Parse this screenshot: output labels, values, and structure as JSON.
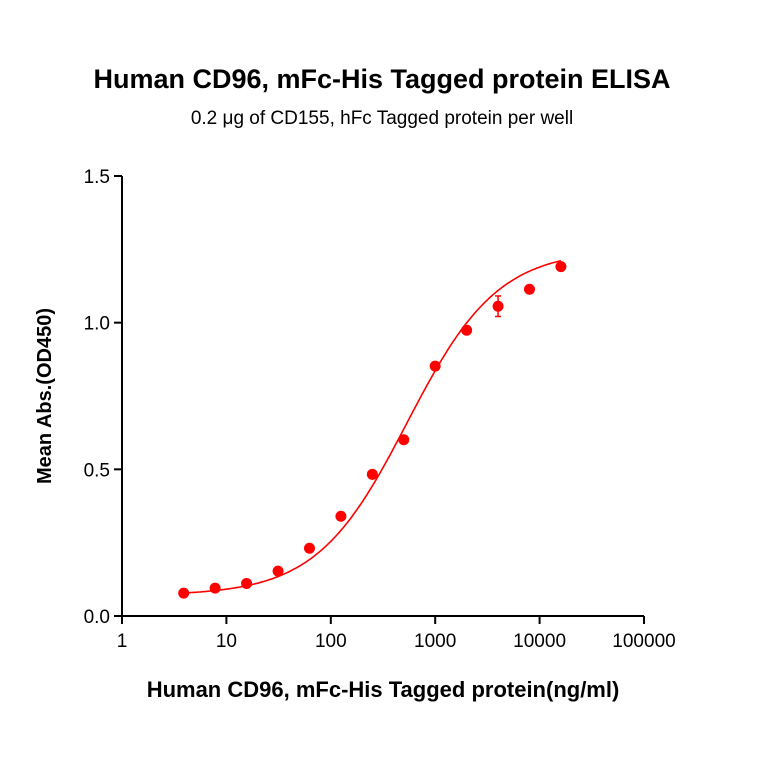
{
  "chart_data": {
    "type": "scatter",
    "title": "Human CD96, mFc-His Tagged protein ELISA",
    "subtitle": "0.2 μg of CD155, hFc Tagged protein per well",
    "xlabel": "Human CD96, mFc-His Tagged protein(ng/ml)",
    "ylabel": "Mean Abs.(OD450)",
    "xscale": "log",
    "xlim": [
      1,
      100000
    ],
    "ylim": [
      0,
      1.5
    ],
    "xticks": [
      1,
      10,
      100,
      1000,
      10000,
      100000
    ],
    "xtick_labels": [
      "1",
      "10",
      "100",
      "1000",
      "10000",
      "100000"
    ],
    "yticks": [
      0,
      0.5,
      1.0,
      1.5
    ],
    "ytick_labels": [
      "0.0",
      "0.5",
      "1.0",
      "1.5"
    ],
    "grid": false,
    "color": "#ff0000",
    "series": [
      {
        "name": "Human CD96, mFc-His",
        "x": [
          3.9,
          7.8,
          15.6,
          31.25,
          62.5,
          125,
          250,
          500,
          1000,
          2000,
          4000,
          8000,
          16000
        ],
        "y": [
          0.078,
          0.095,
          0.111,
          0.153,
          0.231,
          0.34,
          0.483,
          0.601,
          0.852,
          0.974,
          1.056,
          1.114,
          1.191
        ],
        "error": [
          0,
          0,
          0,
          0,
          0,
          0,
          0,
          0,
          0,
          0,
          0.035,
          0,
          0
        ]
      }
    ],
    "fit": {
      "model": "4PL",
      "bottom": 0.07,
      "top": 1.25,
      "ec50": 540,
      "hill": 1.0
    }
  }
}
